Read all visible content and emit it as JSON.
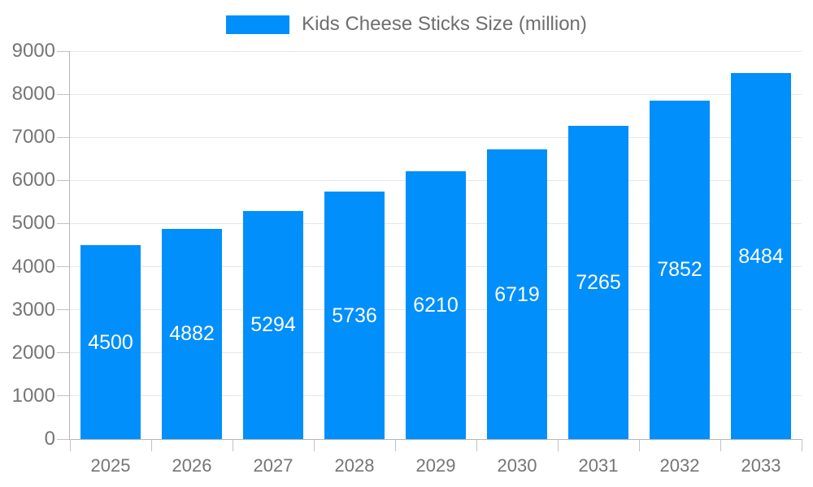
{
  "chart_data": {
    "type": "bar",
    "title": "Kids Cheese Sticks Size (million)",
    "series_name": "Kids Cheese Sticks Size (million)",
    "categories": [
      "2025",
      "2026",
      "2027",
      "2028",
      "2029",
      "2030",
      "2031",
      "2032",
      "2033"
    ],
    "values": [
      4500,
      4882,
      5294,
      5736,
      6210,
      6719,
      7265,
      7852,
      8484
    ],
    "value_labels": [
      "4500",
      "4882",
      "5294",
      "5736",
      "6210",
      "6719",
      "7265",
      "7852",
      "8484"
    ],
    "xlabel": "",
    "ylabel": "",
    "ylim": [
      0,
      9000
    ],
    "ytick_step": 1000,
    "y_ticks": [
      "0",
      "1000",
      "2000",
      "3000",
      "4000",
      "5000",
      "6000",
      "7000",
      "8000",
      "9000"
    ],
    "grid": true,
    "legend_position": "top",
    "bar_color": "#008FFB",
    "value_label_color": "#ffffff",
    "axis_text_color": "#757575"
  }
}
